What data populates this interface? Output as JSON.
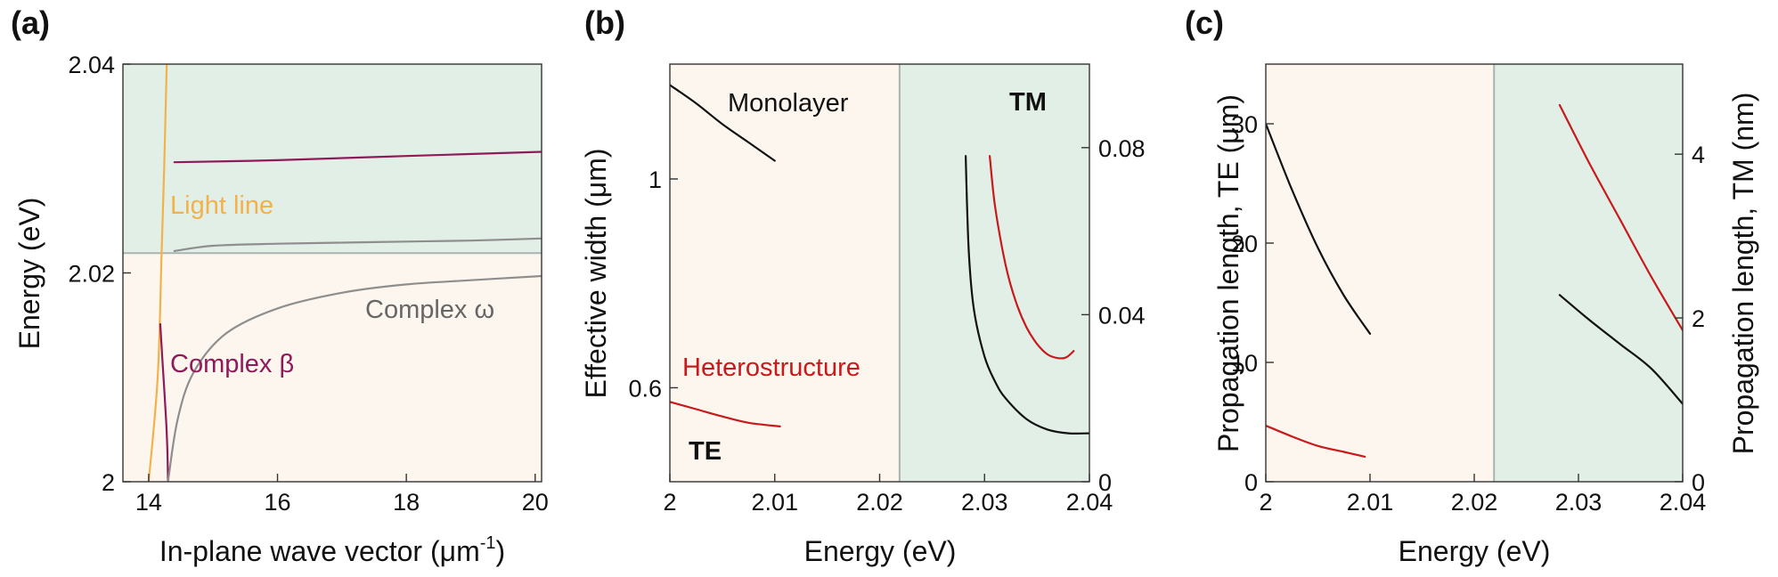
{
  "colors": {
    "te_region": "#fdf6ee",
    "tm_region": "#e2efe6",
    "divider": "#a9b3b0",
    "dark": "#111111",
    "red": "#c8191b",
    "purple": "#8e1a5a",
    "orange": "#f2b24a",
    "gray": "#8e8e8e"
  },
  "chart_data": [
    {
      "type": "line",
      "panel": "(a)",
      "xlabel": "In-plane wave vector (μm",
      "xlabel_sup": "-1",
      "xlabel_close": ")",
      "ylabel": "Energy (eV)",
      "xlim": [
        13.6,
        20.1
      ],
      "ylim": [
        2.0,
        2.04
      ],
      "xticks": [
        14,
        16,
        18,
        20
      ],
      "xtick_labels": [
        "14",
        "16",
        "18",
        "20"
      ],
      "yticks": [
        2.0,
        2.02,
        2.04
      ],
      "ytick_labels": [
        "2",
        "2.02",
        "2.04"
      ],
      "regions": [
        {
          "name": "te",
          "y_range": [
            2.0,
            2.0219
          ]
        },
        {
          "name": "tm",
          "y_range": [
            2.0219,
            2.04
          ]
        }
      ],
      "divider_y": 2.0219,
      "series": [
        {
          "name": "light-line",
          "label": "Light line",
          "color": "orange",
          "points": [
            [
              14.0,
              2.0
            ],
            [
              14.14,
              2.01
            ],
            [
              14.2,
              2.0219
            ],
            [
              14.24,
              2.03
            ],
            [
              14.28,
              2.04
            ]
          ]
        },
        {
          "name": "complex-beta-upper",
          "color": "purple",
          "points": [
            [
              14.4,
              2.0306
            ],
            [
              16,
              2.0308
            ],
            [
              18,
              2.0312
            ],
            [
              20.1,
              2.0316
            ]
          ]
        },
        {
          "name": "complex-beta-lower",
          "label": "Complex β",
          "color": "purple",
          "points": [
            [
              14.18,
              2.0151
            ],
            [
              14.22,
              2.011
            ],
            [
              14.27,
              2.006
            ],
            [
              14.29,
              2.003
            ],
            [
              14.3,
              2.0
            ]
          ]
        },
        {
          "name": "complex-omega-upper",
          "color": "gray",
          "points": [
            [
              14.4,
              2.0221
            ],
            [
              15,
              2.0226
            ],
            [
              16,
              2.0228
            ],
            [
              17,
              2.0229
            ],
            [
              18,
              2.023
            ],
            [
              19,
              2.0231
            ],
            [
              20.1,
              2.0233
            ]
          ]
        },
        {
          "name": "complex-omega-lower",
          "label": "Complex ω",
          "color": "gray",
          "points": [
            [
              14.3,
              2.0
            ],
            [
              14.45,
              2.006
            ],
            [
              14.7,
              2.0105
            ],
            [
              15.2,
              2.0142
            ],
            [
              16,
              2.0166
            ],
            [
              17,
              2.0181
            ],
            [
              18,
              2.0189
            ],
            [
              19,
              2.0193
            ],
            [
              20.1,
              2.0197
            ]
          ]
        }
      ]
    },
    {
      "type": "line",
      "panel": "(b)",
      "xlabel": "Energy (eV)",
      "ylabel": "Effective width (μm)",
      "xlim": [
        2.0,
        2.04
      ],
      "ylim": [
        0.42,
        1.22
      ],
      "y2lim": [
        0.0,
        0.1
      ],
      "xticks": [
        2.0,
        2.01,
        2.02,
        2.03,
        2.04
      ],
      "xtick_labels": [
        "2",
        "2.01",
        "2.02",
        "2.03",
        "2.04"
      ],
      "yticks": [
        0.6,
        1.0
      ],
      "ytick_labels": [
        "0.6",
        "1"
      ],
      "y2ticks": [
        0.0,
        0.04,
        0.08
      ],
      "y2tick_labels": [
        "0",
        "0.04",
        "0.08"
      ],
      "regions": [
        {
          "name": "te",
          "x_range": [
            2.0,
            2.0219
          ],
          "label": "TE"
        },
        {
          "name": "tm",
          "x_range": [
            2.0219,
            2.04
          ],
          "label": "TM"
        }
      ],
      "divider_x": 2.0219,
      "labels": {
        "monolayer": "Monolayer",
        "heterostructure": "Heterostructure"
      },
      "series": [
        {
          "name": "monolayer-te",
          "axis": "left",
          "color": "dark",
          "points": [
            [
              2.0,
              1.18
            ],
            [
              2.0025,
              1.145
            ],
            [
              2.005,
              1.105
            ],
            [
              2.0075,
              1.07
            ],
            [
              2.01,
              1.035
            ]
          ]
        },
        {
          "name": "heterostructure-te",
          "axis": "left",
          "color": "red",
          "points": [
            [
              2.0,
              0.573
            ],
            [
              2.0025,
              0.559
            ],
            [
              2.005,
              0.545
            ],
            [
              2.0075,
              0.533
            ],
            [
              2.0105,
              0.526
            ]
          ]
        },
        {
          "name": "monolayer-tm",
          "axis": "right",
          "color": "dark",
          "points": [
            [
              2.0282,
              0.078
            ],
            [
              2.0285,
              0.055
            ],
            [
              2.029,
              0.041
            ],
            [
              2.03,
              0.03
            ],
            [
              2.031,
              0.024
            ],
            [
              2.032,
              0.02
            ],
            [
              2.034,
              0.015
            ],
            [
              2.036,
              0.0125
            ],
            [
              2.038,
              0.0116
            ],
            [
              2.04,
              0.0116
            ]
          ]
        },
        {
          "name": "heterostructure-tm",
          "axis": "right",
          "color": "red",
          "points": [
            [
              2.0305,
              0.078
            ],
            [
              2.031,
              0.066
            ],
            [
              2.032,
              0.052
            ],
            [
              2.033,
              0.043
            ],
            [
              2.034,
              0.037
            ],
            [
              2.035,
              0.033
            ],
            [
              2.036,
              0.0305
            ],
            [
              2.037,
              0.0296
            ],
            [
              2.0378,
              0.0298
            ],
            [
              2.0385,
              0.0313
            ]
          ]
        }
      ]
    },
    {
      "type": "line",
      "panel": "(c)",
      "xlabel": "Energy (eV)",
      "ylabel": "Propagation length, TE (μm)",
      "y2label": "Propagation length, TM (nm)",
      "xlim": [
        2.0,
        2.04
      ],
      "ylim": [
        0,
        35
      ],
      "y2lim": [
        0,
        5.1
      ],
      "xticks": [
        2.0,
        2.01,
        2.02,
        2.03,
        2.04
      ],
      "xtick_labels": [
        "2",
        "2.01",
        "2.02",
        "2.03",
        "2.04"
      ],
      "yticks": [
        0,
        10,
        20,
        30
      ],
      "ytick_labels": [
        "0",
        "10",
        "20",
        "30"
      ],
      "y2ticks": [
        0,
        2,
        4
      ],
      "y2tick_labels": [
        "0",
        "2",
        "4"
      ],
      "regions": [
        {
          "name": "te",
          "x_range": [
            2.0,
            2.0219
          ]
        },
        {
          "name": "tm",
          "x_range": [
            2.0219,
            2.04
          ]
        }
      ],
      "divider_x": 2.0219,
      "series": [
        {
          "name": "monolayer-te",
          "axis": "left",
          "color": "dark",
          "points": [
            [
              2.0,
              30.0
            ],
            [
              2.0025,
              24.5
            ],
            [
              2.005,
              19.6
            ],
            [
              2.0075,
              15.6
            ],
            [
              2.01,
              12.4
            ]
          ]
        },
        {
          "name": "heterostructure-te",
          "axis": "left",
          "color": "red",
          "points": [
            [
              2.0,
              4.7
            ],
            [
              2.0025,
              3.8
            ],
            [
              2.005,
              3.0
            ],
            [
              2.0075,
              2.5
            ],
            [
              2.0095,
              2.1
            ]
          ]
        },
        {
          "name": "monolayer-tm",
          "axis": "right",
          "color": "dark",
          "points": [
            [
              2.0282,
              2.28
            ],
            [
              2.031,
              1.98
            ],
            [
              2.034,
              1.68
            ],
            [
              2.037,
              1.38
            ],
            [
              2.04,
              0.95
            ]
          ]
        },
        {
          "name": "heterostructure-tm",
          "axis": "right",
          "color": "red",
          "points": [
            [
              2.0282,
              4.6
            ],
            [
              2.031,
              3.9
            ],
            [
              2.034,
              3.2
            ],
            [
              2.037,
              2.5
            ],
            [
              2.04,
              1.85
            ]
          ]
        }
      ]
    }
  ]
}
